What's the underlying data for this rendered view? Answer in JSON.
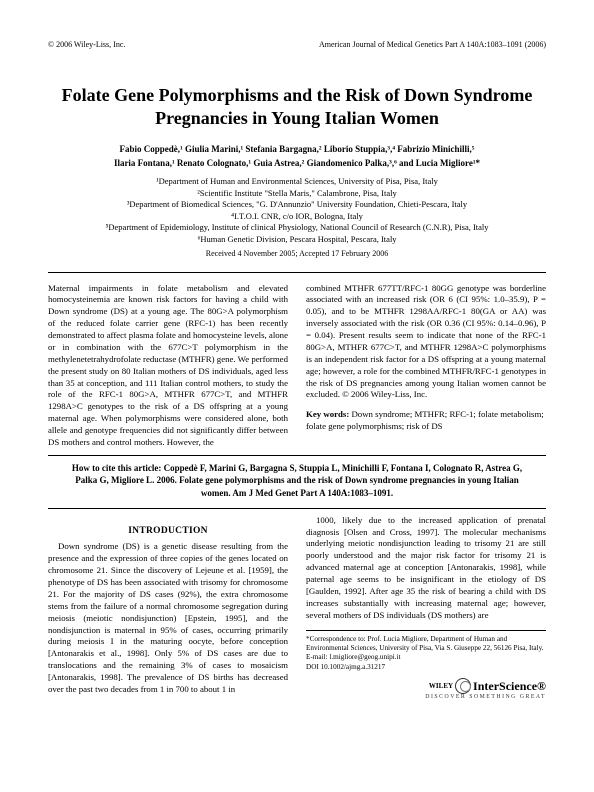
{
  "header": {
    "left": "© 2006 Wiley-Liss, Inc.",
    "right": "American Journal of Medical Genetics Part A 140A:1083–1091 (2006)"
  },
  "title": "Folate Gene Polymorphisms and the Risk of Down Syndrome Pregnancies in Young Italian Women",
  "authors_line1": "Fabio Coppedè,¹ Giulia Marini,¹ Stefania Bargagna,² Liborio Stuppia,³,⁴ Fabrizio Minichilli,⁵",
  "authors_line2": "Ilaria Fontana,¹ Renato Colognato,¹ Guia Astrea,² Giandomenico Palka,³,⁶ and Lucia Migliore¹*",
  "affiliations": {
    "a1": "¹Department of Human and Environmental Sciences, University of Pisa, Pisa, Italy",
    "a2": "²Scientific Institute \"Stella Maris,\" Calambrone, Pisa, Italy",
    "a3": "³Department of Biomedical Sciences, \"G. D'Annunzio\" University Foundation, Chieti-Pescara, Italy",
    "a4": "⁴I.T.O.I. CNR, c/o IOR, Bologna, Italy",
    "a5": "⁵Department of Epidemiology, Institute of clinical Physiology, National Council of Research (C.N.R), Pisa, Italy",
    "a6": "⁶Human Genetic Division, Pescara Hospital, Pescara, Italy"
  },
  "received": "Received 4 November 2005; Accepted 17 February 2006",
  "abstract": {
    "col1": "Maternal impairments in folate metabolism and elevated homocysteinemia are known risk factors for having a child with Down syndrome (DS) at a young age. The 80G>A polymorphism of the reduced folate carrier gene (RFC-1) has been recently demonstrated to affect plasma folate and homocysteine levels, alone or in combination with the 677C>T polymorphism in the methylenetetrahydrofolate reductase (MTHFR) gene. We performed the present study on 80 Italian mothers of DS individuals, aged less than 35 at conception, and 111 Italian control mothers, to study the role of the RFC-1 80G>A, MTHFR 677C>T, and MTHFR 1298A>C genotypes to the risk of a DS offspring at a young maternal age. When polymorphisms were considered alone, both allele and genotype frequencies did not significantly differ between DS mothers and control mothers. However, the",
    "col2": "combined MTHFR 677TT/RFC-1 80GG genotype was borderline associated with an increased risk (OR 6 (CI 95%: 1.0–35.9), P = 0.05), and to be MTHFR 1298AA/RFC-1 80(GA or AA) was inversely associated with the risk (OR 0.36 (CI 95%: 0.14–0.96), P = 0.04). Present results seem to indicate that none of the RFC-1 80G>A, MTHFR 677C>T, and MTHFR 1298A>C polymorphisms is an independent risk factor for a DS offspring at a young maternal age; however, a role for the combined MTHFR/RFC-1 genotypes in the risk of DS pregnancies among young Italian women cannot be excluded.   © 2006 Wiley-Liss, Inc."
  },
  "keywords_label": "Key words:",
  "keywords_text": " Down syndrome; MTHFR; RFC-1; folate metabolism; folate gene polymorphisms; risk of DS",
  "citation": "How to cite this article: Coppedè F, Marini G, Bargagna S, Stuppia L, Minichilli F, Fontana I, Colognato R, Astrea G, Palka G, Migliore L. 2006. Folate gene polymorphisms and the risk of Down syndrome pregnancies in young Italian women. Am J Med Genet Part A 140A:1083–1091.",
  "section_heading": "INTRODUCTION",
  "body": {
    "col1": "Down syndrome (DS) is a genetic disease resulting from the presence and the expression of three copies of the genes located on chromosome 21. Since the discovery of Lejeune et al. [1959], the phenotype of DS has been associated with trisomy for chromosome 21. For the majority of DS cases (92%), the extra chromosome stems from the failure of a normal chromosome segregation during meiosis (meiotic nondisjunction) [Epstein, 1995], and the nondisjunction is maternal in 95% of cases, occurring primarily during meiosis I in the maturing oocyte, before conception [Antonarakis et al., 1998]. Only 5% of DS cases are due to translocations and the remaining 3% of cases to mosaicism [Antonarakis, 1998]. The prevalence of DS births has decreased over the past two decades from 1 in 700 to about 1 in",
    "col2": "1000, likely due to the increased application of prenatal diagnosis [Olsen and Cross, 1997]. The molecular mechanisms underlying meiotic nondisjunction leading to trisomy 21 are still poorly understood and the major risk factor for trisomy 21 is advanced maternal age at conception [Antonarakis, 1998], while paternal age seems to be insignificant in the etiology of DS [Gaulden, 1992]. After age 35 the risk of bearing a child with DS increases substantially with increasing maternal age; however, several mothers of DS individuals (DS mothers) are"
  },
  "correspondence": {
    "line1": "*Correspondence to: Prof. Lucia Migliore, Department of Human and Environmental Sciences, University of Pisa, Via S. Giuseppe 22, 56126 Pisa, Italy. E-mail: l.migliore@geog.unipi.it",
    "line2": "DOI 10.1002/ajmg.a.31217"
  },
  "logo": {
    "wiley": "WILEY",
    "main": "InterScience®",
    "sub": "DISCOVER SOMETHING GREAT"
  },
  "colors": {
    "text": "#000000",
    "background": "#ffffff",
    "rule": "#000000"
  },
  "fonts": {
    "family": "Georgia, 'Times New Roman', serif",
    "title_size_pt": 18,
    "body_size_pt": 8.8,
    "header_size_pt": 8
  }
}
